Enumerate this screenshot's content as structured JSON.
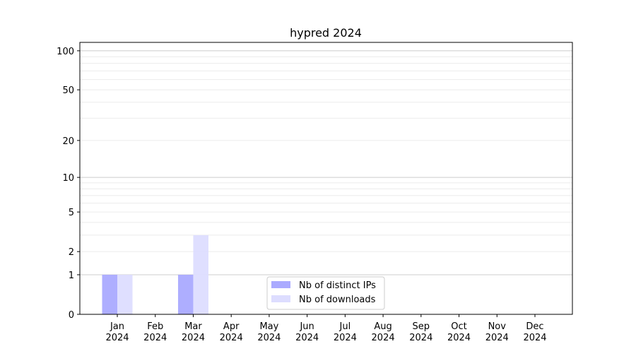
{
  "chart_data": {
    "type": "bar",
    "title": "hypred 2024",
    "xlabel": "",
    "ylabel": "",
    "y_scale": "log(1+y)",
    "ylim": [
      0,
      116
    ],
    "grid": true,
    "legend_placement": "bottom-center",
    "categories": [
      "Jan\n2024",
      "Feb\n2024",
      "Mar\n2024",
      "Apr\n2024",
      "May\n2024",
      "Jun\n2024",
      "Jul\n2024",
      "Aug\n2024",
      "Sep\n2024",
      "Oct\n2024",
      "Nov\n2024",
      "Dec\n2024"
    ],
    "y_ticks": [
      0,
      1,
      2,
      5,
      10,
      20,
      50,
      100
    ],
    "series": [
      {
        "name": "Nb of distinct IPs",
        "color": "#aaaaff",
        "values": [
          1,
          0,
          1,
          0,
          0,
          0,
          0,
          0,
          0,
          0,
          0,
          0
        ]
      },
      {
        "name": "Nb of downloads",
        "color": "#ddddff",
        "values": [
          1,
          0,
          3,
          0,
          0,
          0,
          0,
          0,
          0,
          0,
          0,
          0
        ]
      }
    ]
  }
}
